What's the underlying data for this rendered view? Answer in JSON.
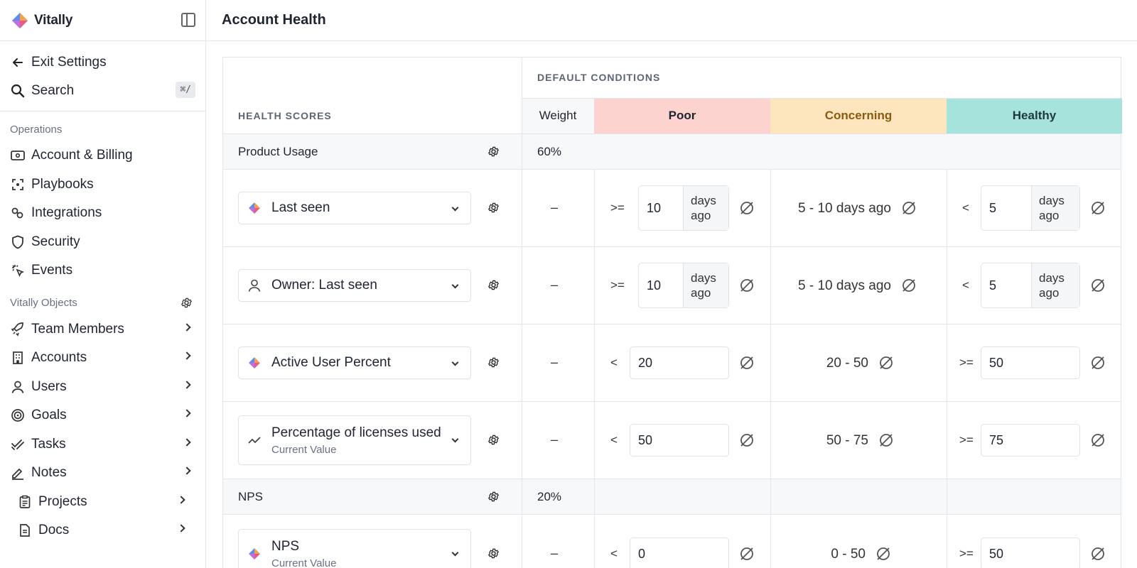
{
  "app": {
    "name": "Vitally"
  },
  "sidebar": {
    "exit_label": "Exit Settings",
    "search_label": "Search",
    "search_shortcut": "⌘/",
    "operations_title": "Operations",
    "operations": [
      {
        "label": "Account & Billing",
        "icon": "billing-icon"
      },
      {
        "label": "Playbooks",
        "icon": "playbooks-icon"
      },
      {
        "label": "Integrations",
        "icon": "integrations-icon"
      },
      {
        "label": "Security",
        "icon": "shield-icon"
      },
      {
        "label": "Events",
        "icon": "events-icon"
      }
    ],
    "objects_title": "Vitally Objects",
    "objects": [
      {
        "label": "Team Members",
        "icon": "rocket-icon"
      },
      {
        "label": "Accounts",
        "icon": "building-icon"
      },
      {
        "label": "Users",
        "icon": "user-icon"
      },
      {
        "label": "Goals",
        "icon": "target-icon"
      },
      {
        "label": "Tasks",
        "icon": "checks-icon"
      },
      {
        "label": "Notes",
        "icon": "pencil-icon"
      },
      {
        "label": "Projects",
        "icon": "clipboard-icon"
      },
      {
        "label": "Docs",
        "icon": "doc-icon"
      }
    ]
  },
  "header": {
    "title": "Account Health"
  },
  "table": {
    "health_scores_label": "HEALTH SCORES",
    "default_conditions_label": "DEFAULT CONDITIONS",
    "weight_label": "Weight",
    "poor_label": "Poor",
    "concerning_label": "Concerning",
    "healthy_label": "Healthy",
    "colors": {
      "poor": "#fdd3cf",
      "concerning": "#fde6bd",
      "healthy": "#a7e3dd"
    },
    "groups": [
      {
        "name": "Product Usage",
        "weight": "60%"
      },
      {
        "name": "NPS",
        "weight": "20%"
      }
    ],
    "rows": [
      {
        "label": "Last seen",
        "sub": "",
        "icon": "vitally-logo-icon",
        "weight": "–",
        "poor_op": ">=",
        "poor_value": "10",
        "poor_unit": "days ago",
        "concerning": "5 - 10 days ago",
        "healthy_op": "<",
        "healthy_value": "5",
        "healthy_unit": "days ago"
      },
      {
        "label": "Owner: Last seen",
        "sub": "",
        "icon": "user-icon",
        "weight": "–",
        "poor_op": ">=",
        "poor_value": "10",
        "poor_unit": "days ago",
        "concerning": "5 - 10 days ago",
        "healthy_op": "<",
        "healthy_value": "5",
        "healthy_unit": "days ago"
      },
      {
        "label": "Active User Percent",
        "sub": "",
        "icon": "vitally-logo-icon",
        "weight": "–",
        "poor_op": "<",
        "poor_value": "20",
        "concerning": "20 - 50",
        "healthy_op": ">=",
        "healthy_value": "50"
      },
      {
        "label": "Percentage of licenses used",
        "sub": "Current Value",
        "icon": "trend-icon",
        "weight": "–",
        "poor_op": "<",
        "poor_value": "50",
        "concerning": "50 - 75",
        "healthy_op": ">=",
        "healthy_value": "75"
      },
      {
        "label": "NPS",
        "sub": "Current Value",
        "icon": "vitally-logo-icon",
        "weight": "–",
        "poor_op": "<",
        "poor_value": "0",
        "concerning": "0 - 50",
        "healthy_op": ">=",
        "healthy_value": "50"
      }
    ]
  }
}
